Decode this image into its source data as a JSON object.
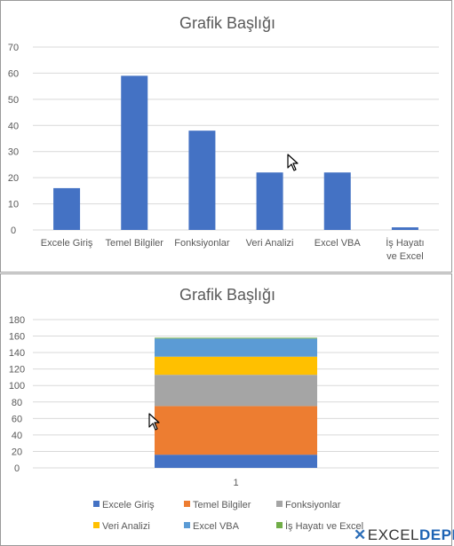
{
  "colors": {
    "bar": "#4472C4",
    "grid": "#d9d9d9",
    "axis_text": "#595959",
    "title_text": "#595959",
    "series": [
      "#4472C4",
      "#ED7D31",
      "#A5A5A5",
      "#FFC000",
      "#5B9BD5",
      "#70AD47"
    ]
  },
  "chart_data": [
    {
      "type": "bar",
      "title": "Grafik Başlığı",
      "categories": [
        "Excele Giriş",
        "Temel Bilgiler",
        "Fonksiyonlar",
        "Veri Analizi",
        "Excel VBA",
        "İş Hayatı ve Excel"
      ],
      "values": [
        16,
        59,
        38,
        22,
        22,
        1
      ],
      "ylim": [
        0,
        70
      ],
      "yticks": [
        "0",
        "10",
        "20",
        "30",
        "40",
        "50",
        "60",
        "70"
      ],
      "grid": true,
      "legend": "none"
    },
    {
      "type": "bar",
      "subtype": "stacked",
      "title": "Grafik Başlığı",
      "categories": [
        "1"
      ],
      "series": [
        {
          "name": "Excele Giriş",
          "values": [
            16
          ]
        },
        {
          "name": "Temel Bilgiler",
          "values": [
            59
          ]
        },
        {
          "name": "Fonksiyonlar",
          "values": [
            38
          ]
        },
        {
          "name": "Veri Analizi",
          "values": [
            22
          ]
        },
        {
          "name": "Excel VBA",
          "values": [
            22
          ]
        },
        {
          "name": "İş Hayatı ve Excel",
          "values": [
            1
          ]
        }
      ],
      "ylim": [
        0,
        180
      ],
      "yticks": [
        "0",
        "20",
        "40",
        "60",
        "80",
        "100",
        "120",
        "140",
        "160",
        "180"
      ],
      "grid": true,
      "legend": "bottom"
    }
  ],
  "watermark": {
    "prefix": "EXCEL",
    "suffix": "DEPRO"
  }
}
